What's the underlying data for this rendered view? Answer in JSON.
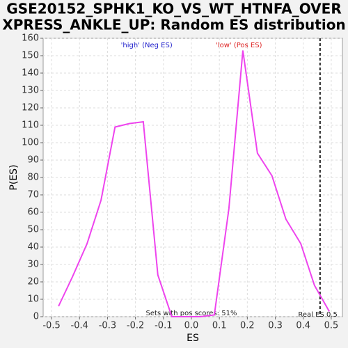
{
  "chart_data": {
    "type": "line",
    "title_lines": [
      "GSE20152_SPHK1_KO_VS_WT_HTNFA_OVER",
      "XPRESS_ANKLE_UP: Random ES distribution"
    ],
    "x_label": "ES",
    "y_label": "P(ES)",
    "annotations": [
      {
        "text": "'high' (Neg ES)",
        "color": "#2222cc",
        "x": -0.16
      },
      {
        "text": "'low' (Pos ES)",
        "color": "#dd2222",
        "x": 0.17
      }
    ],
    "footer_text": "Sets with pos scores: 51%",
    "real_es": {
      "label": "Real ES 0.5",
      "x": 0.46
    },
    "series": [
      {
        "name": "P(ES)",
        "color": "#ee44ee",
        "x": [
          -0.475,
          -0.425,
          -0.373,
          -0.323,
          -0.273,
          -0.221,
          -0.172,
          -0.12,
          -0.07,
          -0.02,
          0.032,
          0.082,
          0.134,
          0.184,
          0.236,
          0.288,
          0.338,
          0.391,
          0.44,
          0.493
        ],
        "values": [
          6,
          23,
          42,
          67,
          109,
          111,
          112,
          24,
          0,
          0,
          0,
          1,
          62,
          153,
          94,
          81,
          56,
          42,
          18,
          3
        ]
      }
    ],
    "xlim": [
      -0.53,
      0.54
    ],
    "ylim": [
      0,
      160
    ],
    "xticks": [
      -0.5,
      -0.4,
      -0.3,
      -0.2,
      -0.1,
      {
        "value": 0,
        "label": "0.0"
      },
      0.1,
      0.2,
      0.3,
      0.4,
      0.5
    ],
    "yticks": [
      0,
      10,
      20,
      30,
      40,
      50,
      60,
      70,
      80,
      90,
      100,
      110,
      120,
      130,
      140,
      150,
      160
    ],
    "grid": true
  }
}
